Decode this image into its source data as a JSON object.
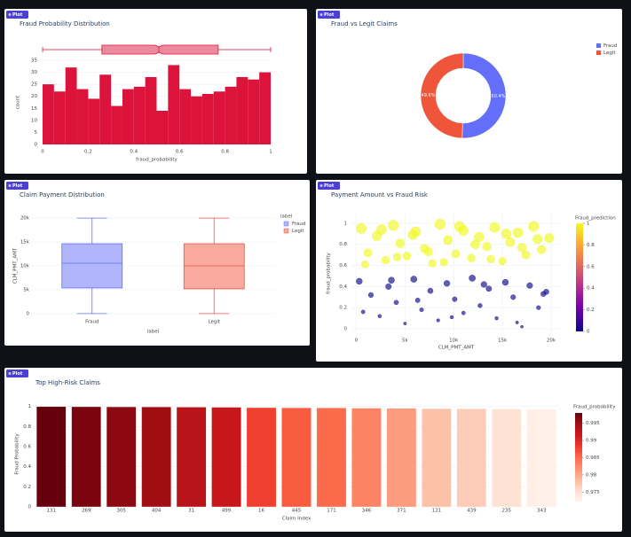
{
  "chart_data": [
    {
      "type": "histogram",
      "badge": "Plot",
      "title": "Fraud Probability Distribution",
      "x_label": "fraud_probability",
      "y_label": "count",
      "bins": [
        0,
        0.05,
        0.1,
        0.15,
        0.2,
        0.25,
        0.3,
        0.35,
        0.4,
        0.45,
        0.5,
        0.55,
        0.6,
        0.65,
        0.7,
        0.75,
        0.8,
        0.85,
        0.9,
        0.95,
        1
      ],
      "values": [
        25,
        22,
        32,
        23,
        19,
        29,
        16,
        23,
        24,
        28,
        14,
        33,
        23,
        20,
        21,
        22,
        24,
        28,
        27,
        30
      ],
      "color": "#dc143c",
      "box": {
        "min": 0,
        "q1": 0.26,
        "median": 0.51,
        "q3": 0.77,
        "max": 1
      },
      "xlim": [
        0,
        1
      ],
      "xticks": [
        0,
        0.2,
        0.4,
        0.6,
        0.8,
        1
      ],
      "ylim": [
        0,
        35
      ],
      "yticks": [
        0,
        5,
        10,
        15,
        20,
        25,
        30,
        35
      ],
      "grid": true
    },
    {
      "type": "donut",
      "badge": "Plot",
      "title": "Fraud vs Legit Claims",
      "categories": [
        "Fraud",
        "Legit"
      ],
      "values": [
        50.4,
        49.6
      ],
      "value_labels": [
        "50.4%",
        "49.6%"
      ],
      "colors": [
        "#636efa",
        "#ef553b"
      ],
      "legend": "top-right"
    },
    {
      "type": "box",
      "badge": "Plot",
      "title": "Claim Payment Distribution",
      "x_label": "label",
      "y_label": "CLM_PMT_AMT",
      "legend_title": "label",
      "categories": [
        "Fraud",
        "Legit"
      ],
      "series": [
        {
          "name": "Fraud",
          "color": "#636efa",
          "min": 0,
          "q1": 5370,
          "median": 10550,
          "q3": 14630,
          "max": 20000
        },
        {
          "name": "Legit",
          "color": "#ef553b",
          "min": 0,
          "q1": 5190,
          "median": 10000,
          "q3": 14630,
          "max": 20000
        }
      ],
      "ylim": [
        -500,
        20500
      ],
      "yticks": [
        0,
        {
          "value": 5000,
          "label": "5k"
        },
        {
          "value": 10000,
          "label": "10k"
        },
        {
          "value": 15000,
          "label": "15k"
        },
        {
          "value": 20000,
          "label": "20k"
        }
      ],
      "grid": true,
      "legend": "top-right"
    },
    {
      "type": "scatter",
      "badge": "Plot",
      "title": "Payment Amount vs Fraud Risk",
      "x_label": "CLM_PMT_AMT",
      "y_label": "fraud_probability",
      "colorbar_title": "Fraud_prediction",
      "colorscale": "Plasma",
      "x": [
        500,
        1200,
        2100,
        3000,
        3800,
        4500,
        5200,
        6100,
        7000,
        7800,
        8600,
        9400,
        10200,
        11000,
        11800,
        12600,
        13400,
        14200,
        15000,
        15800,
        16600,
        17400,
        18200,
        19000,
        19800,
        900,
        2600,
        4200,
        5800,
        7400,
        9000,
        10600,
        12200,
        13800,
        15400,
        17000,
        18600,
        300,
        1500,
        2400,
        3300,
        4100,
        5000,
        5900,
        6700,
        7600,
        8400,
        9300,
        10100,
        11000,
        11900,
        12700,
        13600,
        14400,
        15300,
        16100,
        17000,
        17800,
        18700,
        19500,
        700,
        3600,
        6300,
        9800,
        13100,
        16500,
        19200
      ],
      "values": [
        0.95,
        0.72,
        0.88,
        0.65,
        0.98,
        0.81,
        0.69,
        0.92,
        0.76,
        0.62,
        0.99,
        0.84,
        0.71,
        0.93,
        0.67,
        0.87,
        0.78,
        0.96,
        0.64,
        0.82,
        0.91,
        0.7,
        0.97,
        0.75,
        0.86,
        0.61,
        0.94,
        0.68,
        0.89,
        0.73,
        0.63,
        0.97,
        0.8,
        0.66,
        0.9,
        0.77,
        0.85,
        0.45,
        0.32,
        0.12,
        0.4,
        0.25,
        0.05,
        0.47,
        0.18,
        0.36,
        0.08,
        0.43,
        0.28,
        0.15,
        0.48,
        0.22,
        0.38,
        0.1,
        0.44,
        0.3,
        0.02,
        0.41,
        0.2,
        0.35,
        0.16,
        0.46,
        0.27,
        0.11,
        0.42,
        0.06,
        0.33
      ],
      "color_values": [
        1,
        1,
        1,
        1,
        1,
        1,
        1,
        1,
        1,
        1,
        1,
        1,
        1,
        1,
        1,
        1,
        1,
        1,
        1,
        1,
        1,
        1,
        1,
        1,
        1,
        1,
        1,
        1,
        1,
        1,
        1,
        1,
        1,
        1,
        1,
        1,
        1,
        0,
        0,
        0,
        0,
        0,
        0,
        0,
        0,
        0,
        0,
        0,
        0,
        0,
        0,
        0,
        0,
        0,
        0,
        0,
        0,
        0,
        0,
        0,
        0,
        0,
        0,
        0,
        0,
        0,
        0
      ],
      "xlim": [
        -500,
        21000
      ],
      "xticks": [
        0,
        {
          "value": 5000,
          "label": "5k"
        },
        {
          "value": 10000,
          "label": "10k"
        },
        {
          "value": 15000,
          "label": "15k"
        },
        {
          "value": 20000,
          "label": "20k"
        }
      ],
      "ylim": [
        -0.05,
        1.1
      ],
      "yticks": [
        0,
        0.2,
        0.4,
        0.6,
        0.8,
        1
      ],
      "clim": [
        0,
        1
      ],
      "cticks": [
        0,
        0.2,
        0.4,
        0.6,
        0.8,
        1
      ],
      "grid": true
    },
    {
      "type": "bar",
      "badge": "Plot",
      "title": "Top High-Risk Claims",
      "x_label": "Claim Index",
      "y_label": "Fraud Probability",
      "colorbar_title": "Fraud_probability",
      "colorscale": "Reds",
      "categories": [
        "131",
        "269",
        "305",
        "404",
        "31",
        "499",
        "16",
        "445",
        "171",
        "346",
        "371",
        "121",
        "439",
        "235",
        "343"
      ],
      "values": [
        0.998,
        0.997,
        0.996,
        0.995,
        0.993,
        0.992,
        0.988,
        0.986,
        0.985,
        0.983,
        0.981,
        0.978,
        0.977,
        0.975,
        0.973
      ],
      "ylim": [
        0,
        1.05
      ],
      "yticks": [
        0,
        0.2,
        0.4,
        0.6,
        0.8,
        1
      ],
      "clim": [
        0.972,
        0.998
      ],
      "cticks": [
        0.975,
        0.98,
        0.985,
        0.99,
        0.995
      ],
      "grid": true
    }
  ]
}
